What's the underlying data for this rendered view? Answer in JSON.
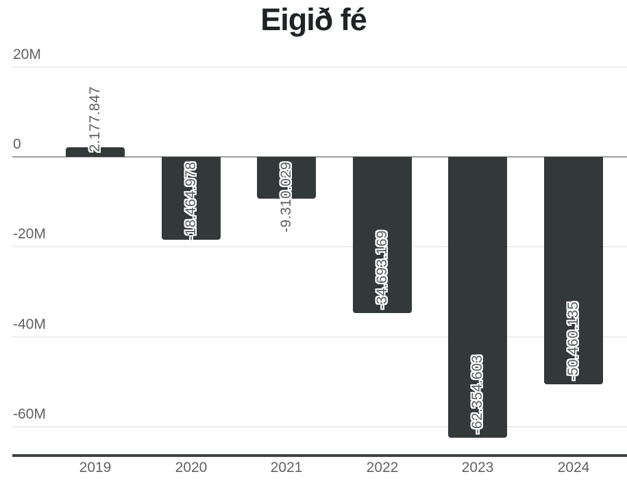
{
  "chart_data": {
    "type": "bar",
    "title": "Eigið fé",
    "categories": [
      "2019",
      "2020",
      "2021",
      "2022",
      "2023",
      "2024"
    ],
    "values": [
      2177847,
      -18464978,
      -9310029,
      -34693169,
      -62354603,
      -50460135
    ],
    "value_labels": [
      "2.177.847",
      "-18.464.978",
      "-9.310.029",
      "-34.693.169",
      "-62.354.603",
      "-50.460.135"
    ],
    "series": [
      {
        "name": "Eigið fé",
        "values": [
          2177847,
          -18464978,
          -9310029,
          -34693169,
          -62354603,
          -50460135
        ]
      }
    ],
    "y_ticks": [
      {
        "label": "20M",
        "value": 20000000
      },
      {
        "label": "0",
        "value": 0
      },
      {
        "label": "-20M",
        "value": -20000000
      },
      {
        "label": "-40M",
        "value": -40000000
      },
      {
        "label": "-60M",
        "value": -60000000
      }
    ],
    "ylim": [
      -66000000,
      20000000
    ],
    "xlabel": "",
    "ylabel": "",
    "grid": true,
    "legend": "none",
    "colors": {
      "bar": "#333939",
      "title": "#1f2326",
      "axis_label": "#616161",
      "value_label": "#5d6164",
      "value_label_outline": "#ffffff",
      "gridline": "#ececec",
      "zero_line": "#9e9e9e",
      "axis_line": "#3a3f42",
      "background": "#ffffff"
    }
  }
}
